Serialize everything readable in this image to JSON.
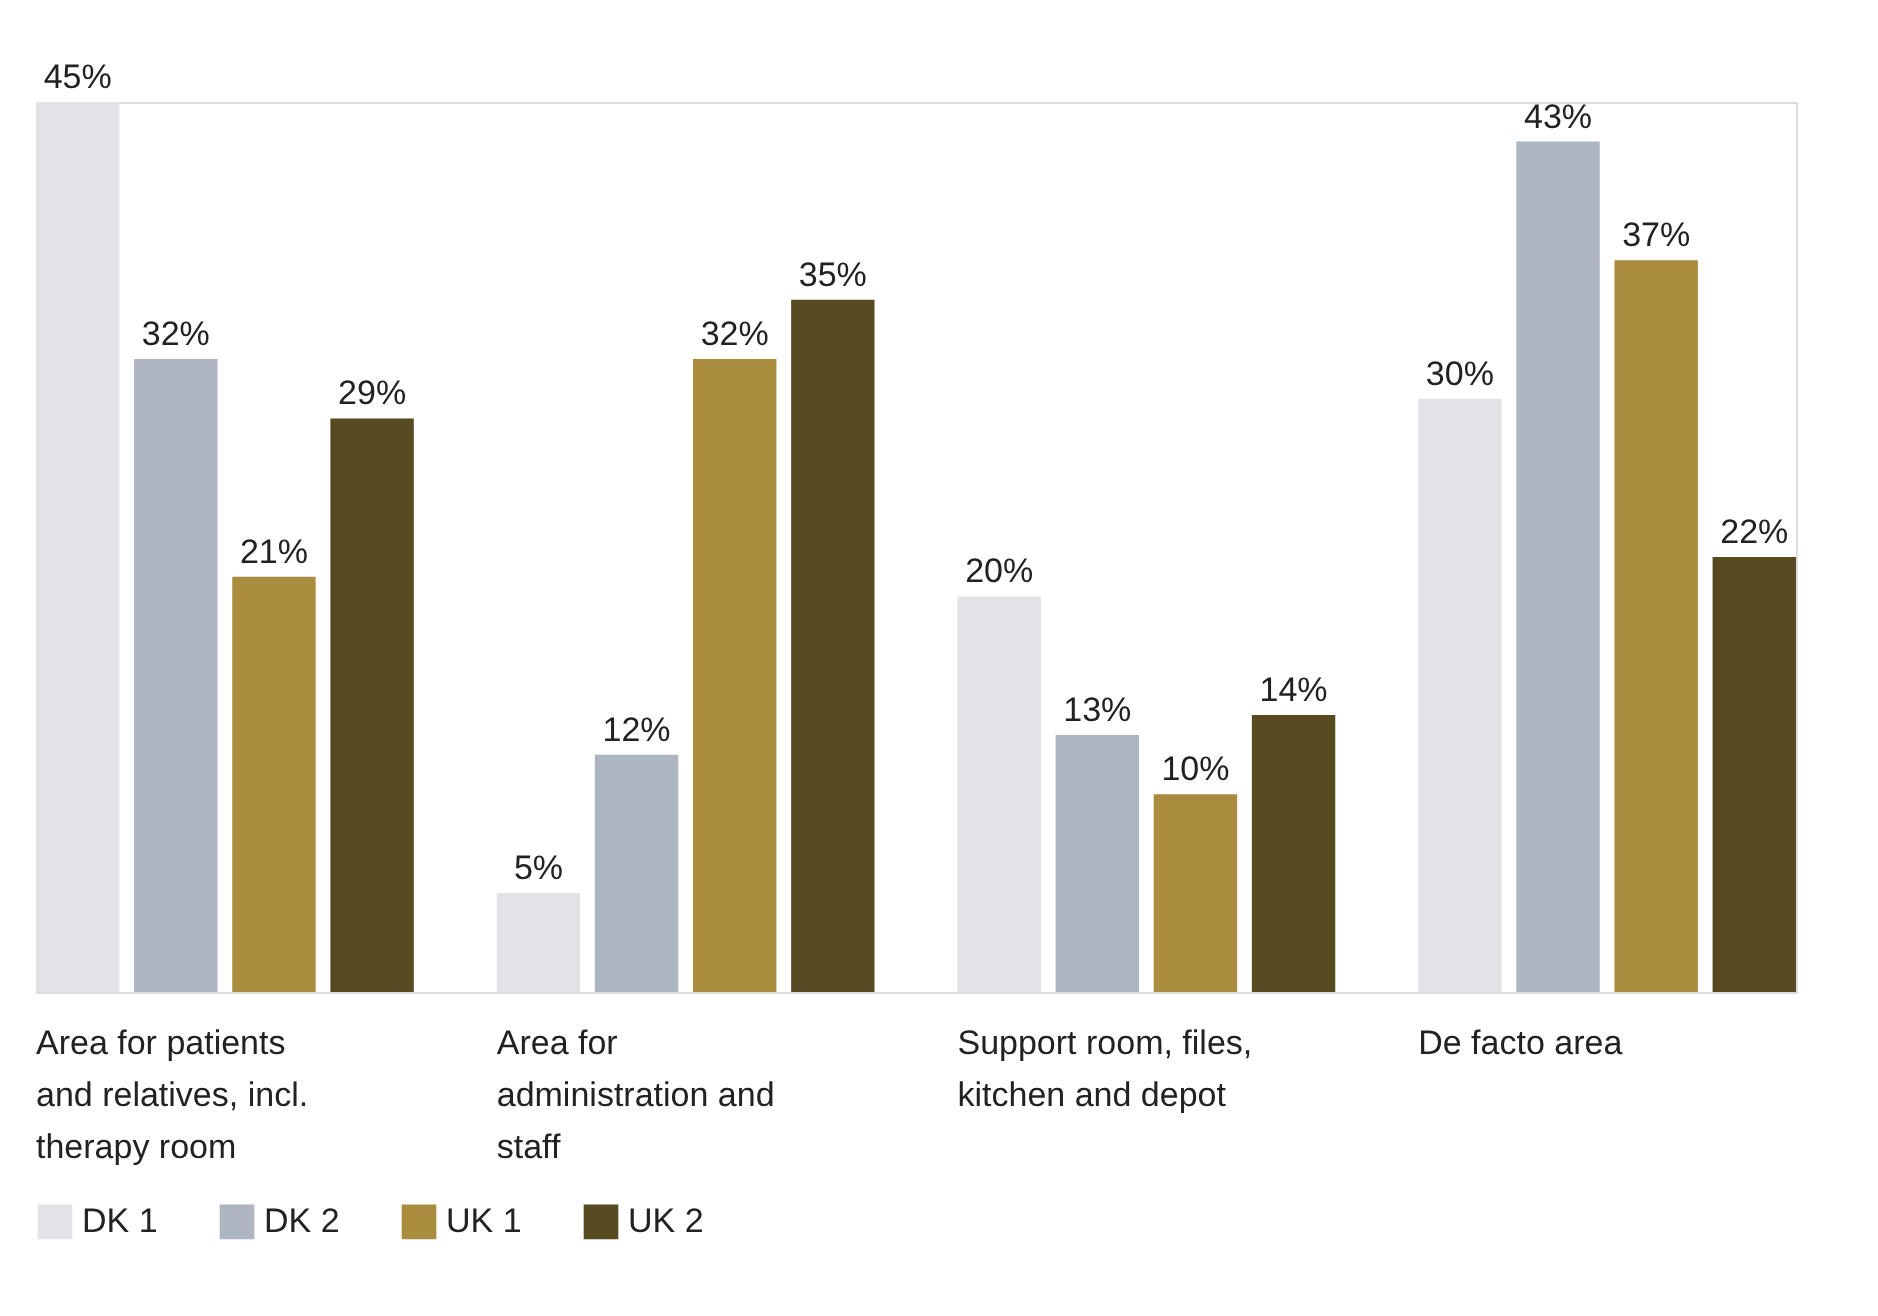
{
  "chart_data": {
    "type": "bar",
    "categories": [
      "Area for patients and relatives, incl. therapy room",
      "Area for administration and staff",
      "Support room, files, kitchen and depot",
      "De facto area"
    ],
    "series": [
      {
        "name": "DK 1",
        "color": "#e1e3e6",
        "values": [
          45,
          5,
          20,
          30
        ],
        "value_labels": [
          "45%",
          "5%",
          "20%",
          "30%"
        ]
      },
      {
        "name": "DK 2",
        "color": "#adb5c1",
        "values": [
          32,
          12,
          13,
          43
        ],
        "value_labels": [
          "32%",
          "12%",
          "13%",
          "43%"
        ]
      },
      {
        "name": "UK 1",
        "color": "#a98c3e",
        "values": [
          21,
          32,
          10,
          37
        ],
        "value_labels": [
          "21%",
          "32%",
          "10%",
          "37%"
        ]
      },
      {
        "name": "UK 2",
        "color": "#574a20",
        "values": [
          29,
          35,
          14,
          22
        ],
        "value_labels": [
          "29%",
          "35%",
          "14%",
          "22%"
        ]
      }
    ],
    "legend": "bottom left",
    "grid": false
  }
}
